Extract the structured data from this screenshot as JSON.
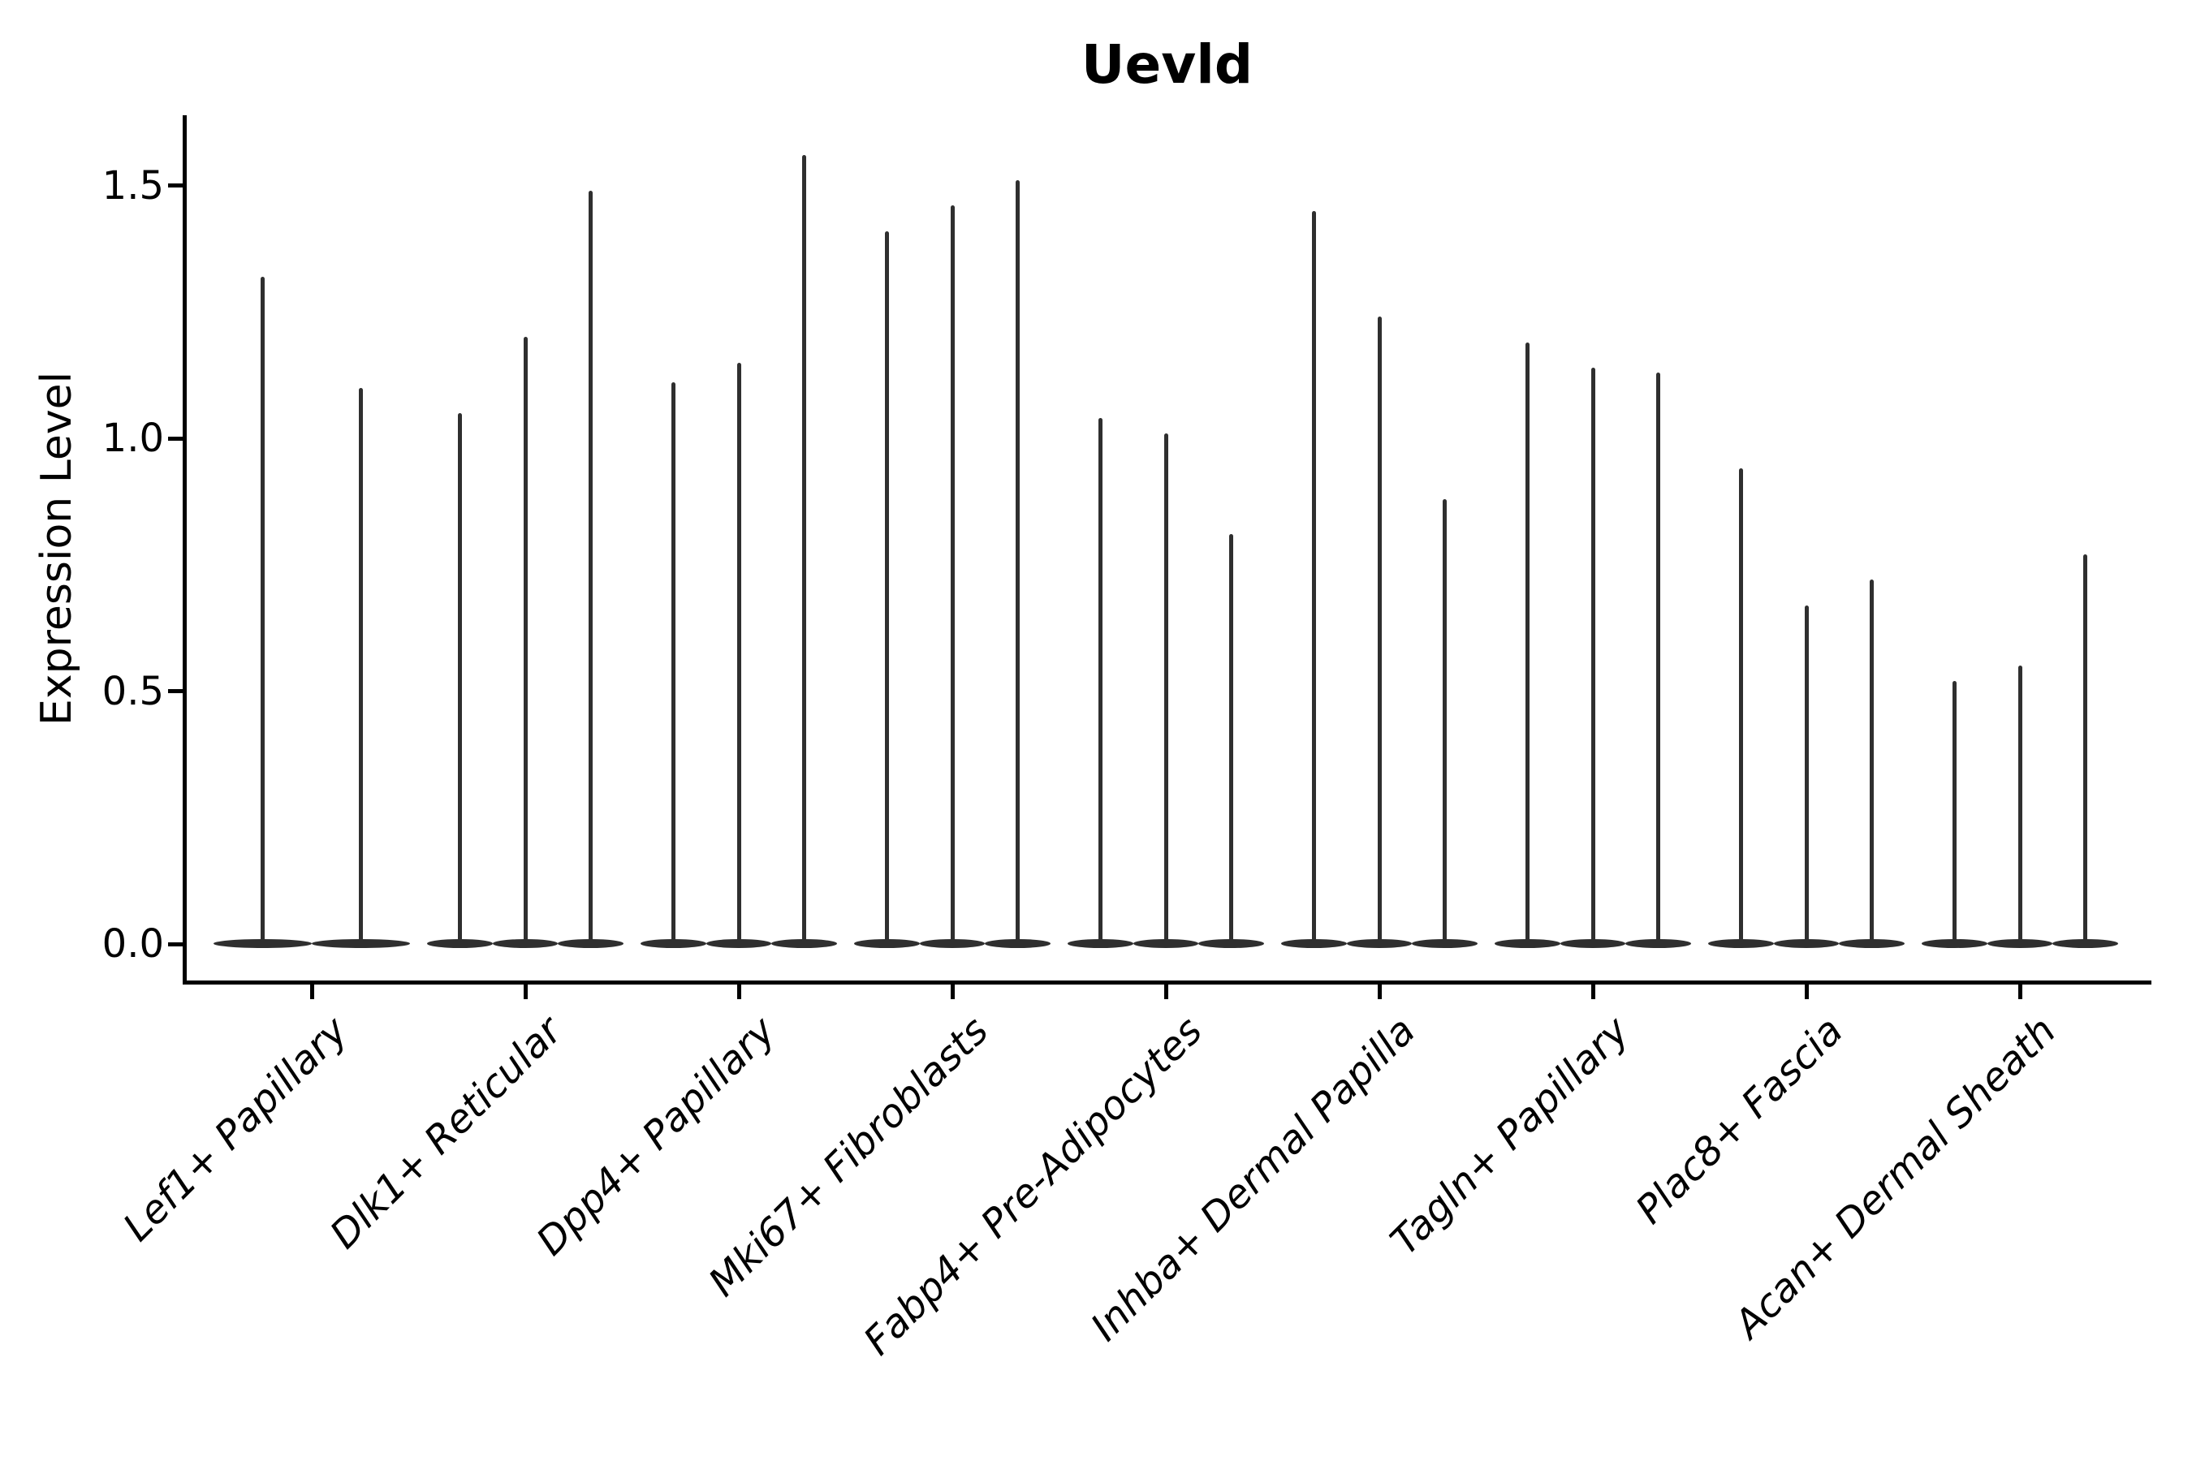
{
  "title": "Uevld",
  "ylabel": "Expression Level",
  "colors": {
    "background": "#ffffff",
    "violin": "#2f2f2f",
    "spine": "#000000",
    "text": "#000000"
  },
  "chart_data": {
    "type": "violin",
    "title": "Uevld",
    "xlabel": "",
    "ylabel": "Expression Level",
    "yticks": [
      "0.0",
      "0.5",
      "1.0",
      "1.5"
    ],
    "ytick_values": [
      0.0,
      0.5,
      1.0,
      1.5
    ],
    "ylim": [
      -0.08,
      1.64
    ],
    "grid": false,
    "legend": null,
    "violin_style": "nearly all density at 0 producing a wide flat base with a thin vertical spike rising to the maximum expression value",
    "categories": [
      "Lef1+ Papillary",
      "Dlk1+ Reticular",
      "Dpp4+ Papillary",
      "Mki67+ Fibroblasts",
      "Fabp4+ Pre-Adipocytes",
      "Inhba+ Dermal Papilla",
      "Tagln+ Papillary",
      "Plac8+ Fascia",
      "Acan+ Dermal Sheath"
    ],
    "groups": [
      {
        "category": "Lef1+ Papillary",
        "violin_maxima": [
          1.32,
          1.1
        ]
      },
      {
        "category": "Dlk1+ Reticular",
        "violin_maxima": [
          1.05,
          1.2,
          1.49
        ]
      },
      {
        "category": "Dpp4+ Papillary",
        "violin_maxima": [
          1.11,
          1.15,
          1.56
        ]
      },
      {
        "category": "Mki67+ Fibroblasts",
        "violin_maxima": [
          1.41,
          1.46,
          1.51
        ]
      },
      {
        "category": "Fabp4+ Pre-Adipocytes",
        "violin_maxima": [
          1.04,
          1.01,
          0.81
        ]
      },
      {
        "category": "Inhba+ Dermal Papilla",
        "violin_maxima": [
          1.45,
          1.24,
          0.88
        ]
      },
      {
        "category": "Tagln+ Papillary",
        "violin_maxima": [
          1.19,
          1.14,
          1.13
        ]
      },
      {
        "category": "Plac8+ Fascia",
        "violin_maxima": [
          0.94,
          0.67,
          0.72
        ]
      },
      {
        "category": "Acan+ Dermal Sheath",
        "violin_maxima": [
          0.52,
          0.55,
          0.77
        ]
      }
    ]
  }
}
